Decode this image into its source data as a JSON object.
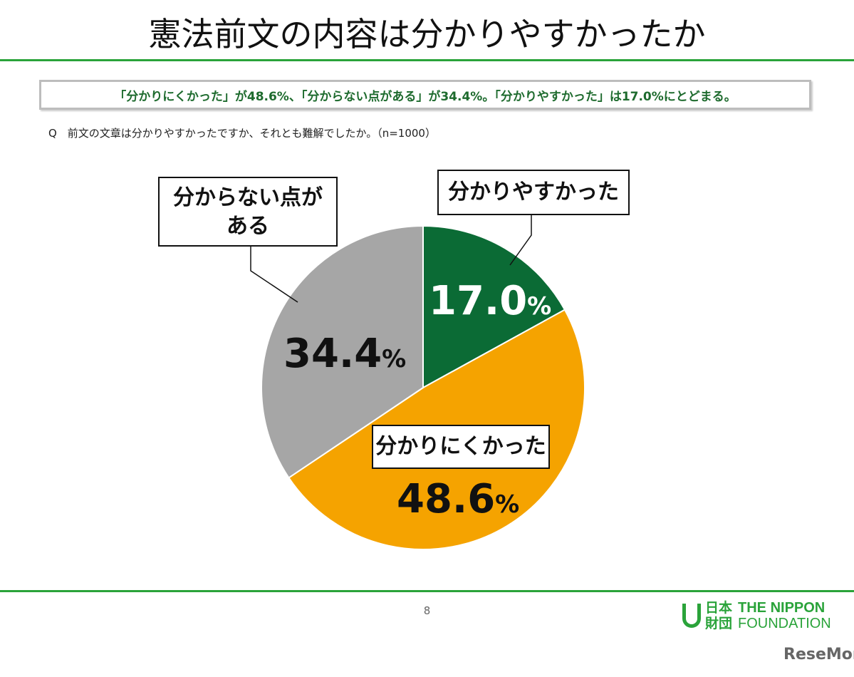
{
  "header": {
    "title": "憲法前文の内容は分かりやすかったか"
  },
  "summary": "「分かりにくかった」が48.6%、「分からない点がある」が34.4%。「分かりやすかった」は17.0%にとどまる。",
  "question": "Q　前文の文章は分かりやすかったですか、それとも難解でしたか。（n=1000）",
  "chart_data": {
    "type": "pie",
    "title": "憲法前文の内容は分かりやすかったか",
    "start": "top-clockwise",
    "slices": [
      {
        "label": "分かりやすかった",
        "value": 17.0,
        "display": "17.0",
        "color": "#0b6b35",
        "text_color": "#ffffff"
      },
      {
        "label": "分かりにくかった",
        "value": 48.6,
        "display": "48.6",
        "color": "#f5a300",
        "text_color": "#111111"
      },
      {
        "label": "分からない点がある",
        "value": 34.4,
        "display": "34.4",
        "color": "#a6a6a6",
        "text_color": "#111111"
      }
    ],
    "unit": "%"
  },
  "footer": {
    "page": "8",
    "logo_jp1": "日本",
    "logo_jp2": "財団",
    "logo_en1": "THE NIPPON",
    "logo_en2": "FOUNDATION",
    "watermark": "ReseMom"
  }
}
